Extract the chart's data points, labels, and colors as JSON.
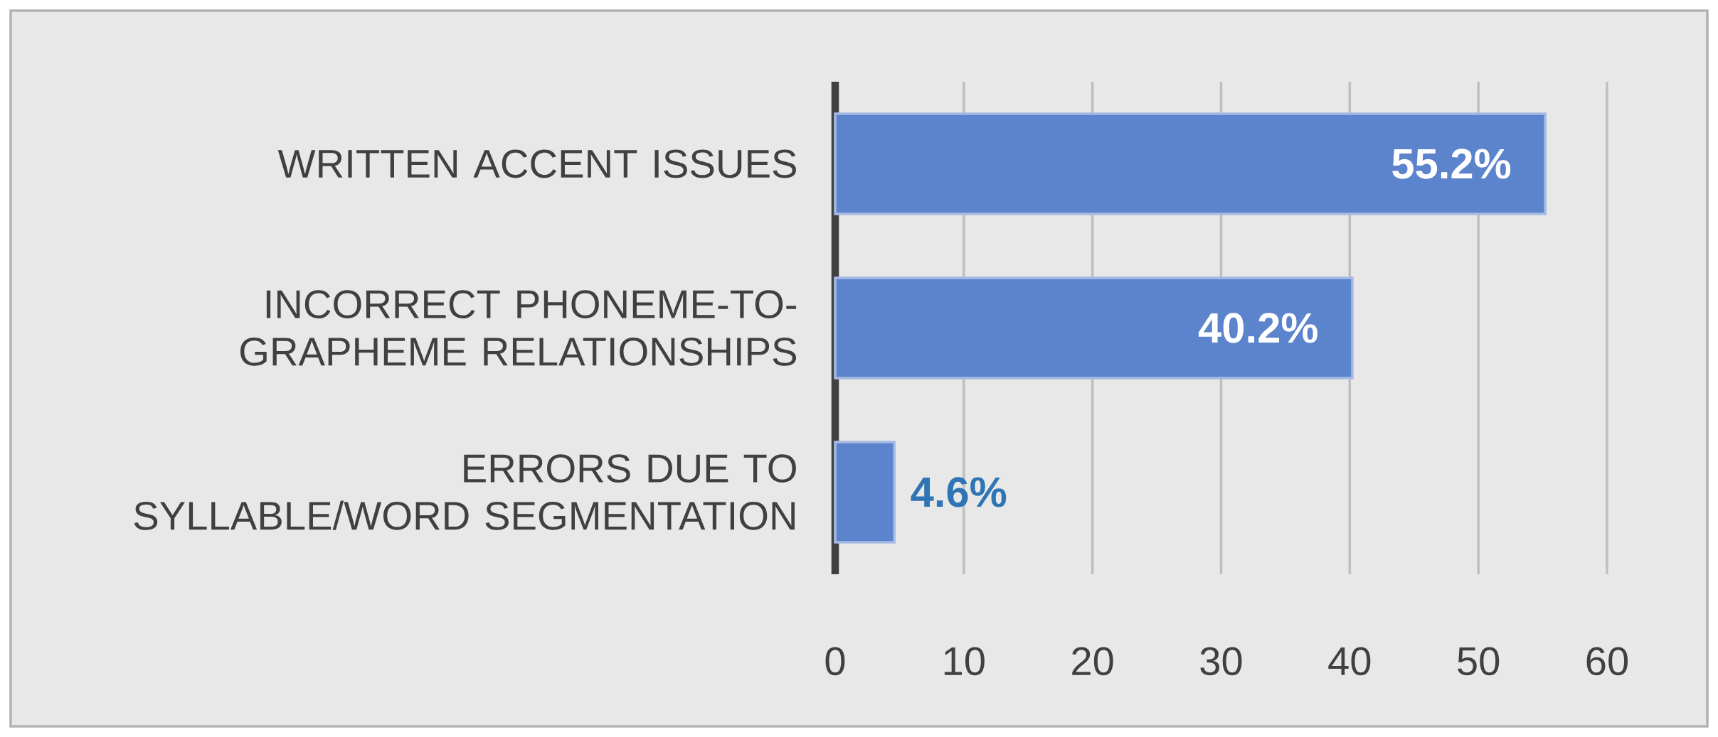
{
  "chart_data": {
    "type": "bar",
    "orientation": "horizontal",
    "categories": [
      "WRITTEN ACCENT ISSUES",
      "INCORRECT PHONEME-TO-GRAPHEME RELATIONSHIPS",
      "ERRORS DUE TO SYLLABLE/WORD SEGMENTATION"
    ],
    "values": [
      55.2,
      40.2,
      4.6
    ],
    "value_labels": [
      "55.2%",
      "40.2%",
      "4.6%"
    ],
    "color": "#5b84cc",
    "xlim": [
      0,
      60
    ],
    "xticks": [
      0,
      10,
      20,
      30,
      40,
      50,
      60
    ],
    "grid": "x"
  }
}
